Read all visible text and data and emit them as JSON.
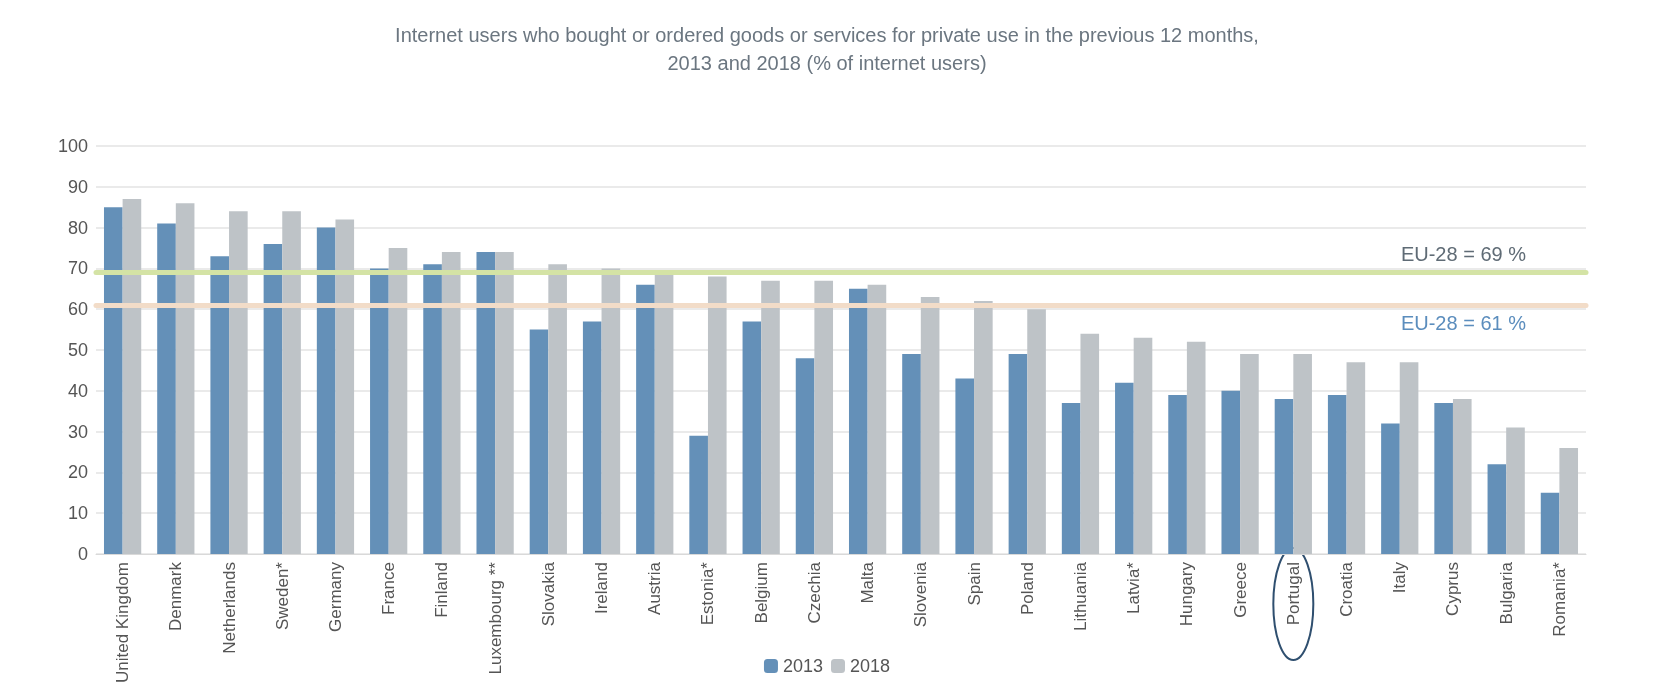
{
  "chart_data": {
    "type": "bar",
    "title": "Internet users who bought or ordered goods or services for private use in the previous 12 months,\n2013 and 2018 (% of internet users)",
    "categories": [
      "United Kingdom",
      "Denmark",
      "Netherlands",
      "Sweden*",
      "Germany",
      "France",
      "Finland",
      "Luxembourg **",
      "Slovakia",
      "Ireland",
      "Austria",
      "Estonia*",
      "Belgium",
      "Czechia",
      "Malta",
      "Slovenia",
      "Spain",
      "Poland",
      "Lithuania",
      "Latvia*",
      "Hungary",
      "Greece",
      "Portugal",
      "Croatia",
      "Italy",
      "Cyprus",
      "Bulgaria",
      "Romania*"
    ],
    "series": [
      {
        "name": "2013",
        "color": "#6490b8",
        "values": [
          85,
          81,
          73,
          76,
          80,
          70,
          71,
          74,
          55,
          57,
          66,
          29,
          57,
          48,
          65,
          49,
          43,
          49,
          37,
          42,
          39,
          40,
          38,
          39,
          32,
          37,
          22,
          15
        ]
      },
      {
        "name": "2018",
        "color": "#bec3c7",
        "values": [
          87,
          86,
          84,
          84,
          82,
          75,
          74,
          74,
          71,
          70,
          69,
          68,
          67,
          67,
          66,
          63,
          62,
          60,
          54,
          53,
          52,
          49,
          49,
          47,
          47,
          38,
          31,
          26
        ]
      }
    ],
    "ylim": [
      0,
      100
    ],
    "yticks": [
      0,
      10,
      20,
      30,
      40,
      50,
      60,
      70,
      80,
      90,
      100
    ],
    "grid": "y",
    "legend": "bottom",
    "ref_lines": [
      {
        "axis": "y",
        "value": 69,
        "label": "EU-28 = 69 %",
        "color": "#d4e3a5"
      },
      {
        "axis": "y",
        "value": 61,
        "label": "EU-28 = 61 %",
        "color": "#f2dcc8"
      }
    ]
  }
}
